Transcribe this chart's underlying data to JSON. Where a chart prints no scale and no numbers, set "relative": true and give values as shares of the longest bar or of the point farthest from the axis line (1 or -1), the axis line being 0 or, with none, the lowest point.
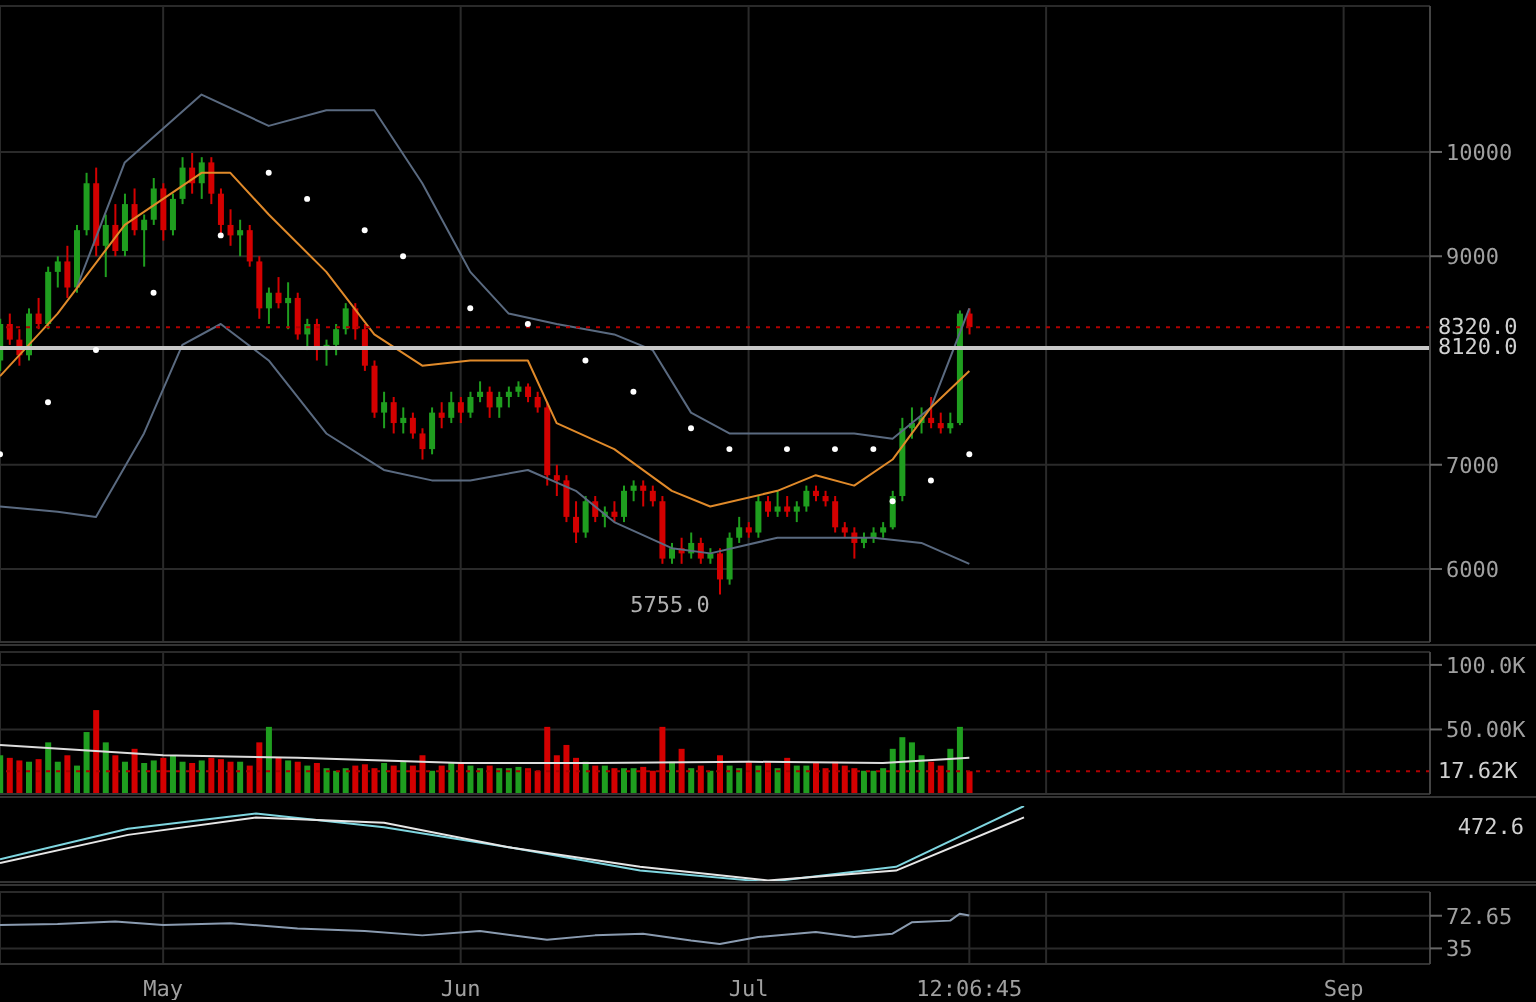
{
  "chart_data": [
    {
      "type": "candlestick",
      "x": [
        "--04-14",
        "--04-15",
        "--04-16",
        "--04-17",
        "--04-18",
        "--04-19",
        "--04-20",
        "--04-21",
        "--04-22",
        "--04-23",
        "--04-24",
        "--04-25",
        "--04-26",
        "--04-27",
        "--04-28",
        "--04-29",
        "--04-30",
        "--05-01",
        "--05-02",
        "--05-03",
        "--05-04",
        "--05-05",
        "--05-06",
        "--05-07",
        "--05-08",
        "--05-09",
        "--05-10",
        "--05-11",
        "--05-12",
        "--05-13",
        "--05-14",
        "--05-15",
        "--05-16",
        "--05-17",
        "--05-18",
        "--05-19",
        "--05-20",
        "--05-21",
        "--05-22",
        "--05-23",
        "--05-24",
        "--05-25",
        "--05-26",
        "--05-27",
        "--05-28",
        "--05-29",
        "--05-30",
        "--05-31",
        "--06-01",
        "--06-02",
        "--06-03",
        "--06-04",
        "--06-05",
        "--06-06",
        "--06-07",
        "--06-08",
        "--06-09",
        "--06-10",
        "--06-11",
        "--06-12",
        "--06-13",
        "--06-14",
        "--06-15",
        "--06-16",
        "--06-17",
        "--06-18",
        "--06-19",
        "--06-20",
        "--06-21",
        "--06-22",
        "--06-23",
        "--06-24",
        "--06-25",
        "--06-26",
        "--06-27",
        "--06-28",
        "--06-29",
        "--06-30",
        "--07-01",
        "--07-02",
        "--07-03",
        "--07-04",
        "--07-05",
        "--07-06",
        "--07-07",
        "--07-08",
        "--07-09",
        "--07-10",
        "--07-11",
        "--07-12",
        "--07-13",
        "--07-14",
        "--07-15",
        "--07-16",
        "--07-17",
        "--07-18",
        "--07-19",
        "--07-20",
        "--07-21",
        "--07-22",
        "--07-23",
        "--07-24"
      ],
      "ohlc": [
        [
          8000,
          8400,
          7900,
          8350
        ],
        [
          8350,
          8450,
          8150,
          8200
        ],
        [
          8200,
          8300,
          7950,
          8050
        ],
        [
          8050,
          8500,
          8000,
          8450
        ],
        [
          8450,
          8600,
          8300,
          8350
        ],
        [
          8350,
          8900,
          8300,
          8850
        ],
        [
          8850,
          9000,
          8700,
          8950
        ],
        [
          8950,
          9100,
          8600,
          8700
        ],
        [
          8700,
          9300,
          8650,
          9250
        ],
        [
          9250,
          9800,
          9200,
          9700
        ],
        [
          9700,
          9850,
          9000,
          9100
        ],
        [
          9100,
          9400,
          8800,
          9300
        ],
        [
          9300,
          9500,
          9000,
          9050
        ],
        [
          9050,
          9600,
          9000,
          9500
        ],
        [
          9500,
          9650,
          9200,
          9250
        ],
        [
          9250,
          9400,
          8900,
          9350
        ],
        [
          9350,
          9750,
          9300,
          9650
        ],
        [
          9650,
          9700,
          9150,
          9250
        ],
        [
          9250,
          9600,
          9200,
          9550
        ],
        [
          9550,
          9950,
          9500,
          9850
        ],
        [
          9850,
          9990,
          9600,
          9700
        ],
        [
          9700,
          9950,
          9550,
          9900
        ],
        [
          9900,
          9950,
          9500,
          9600
        ],
        [
          9600,
          9650,
          9200,
          9300
        ],
        [
          9300,
          9450,
          9100,
          9200
        ],
        [
          9200,
          9350,
          9000,
          9250
        ],
        [
          9250,
          9300,
          8900,
          8950
        ],
        [
          8950,
          9000,
          8400,
          8500
        ],
        [
          8500,
          8700,
          8350,
          8650
        ],
        [
          8650,
          8800,
          8500,
          8550
        ],
        [
          8550,
          8750,
          8300,
          8600
        ],
        [
          8600,
          8650,
          8200,
          8250
        ],
        [
          8250,
          8400,
          8100,
          8350
        ],
        [
          8350,
          8400,
          8000,
          8100
        ],
        [
          8100,
          8200,
          7950,
          8150
        ],
        [
          8150,
          8350,
          8050,
          8300
        ],
        [
          8300,
          8550,
          8250,
          8500
        ],
        [
          8500,
          8550,
          8200,
          8300
        ],
        [
          8300,
          8350,
          7900,
          7950
        ],
        [
          7950,
          8000,
          7450,
          7500
        ],
        [
          7500,
          7700,
          7350,
          7600
        ],
        [
          7600,
          7650,
          7300,
          7400
        ],
        [
          7400,
          7550,
          7300,
          7450
        ],
        [
          7450,
          7500,
          7250,
          7300
        ],
        [
          7300,
          7350,
          7050,
          7150
        ],
        [
          7150,
          7550,
          7100,
          7500
        ],
        [
          7500,
          7600,
          7350,
          7450
        ],
        [
          7450,
          7700,
          7400,
          7600
        ],
        [
          7600,
          7650,
          7400,
          7500
        ],
        [
          7500,
          7700,
          7450,
          7650
        ],
        [
          7650,
          7800,
          7600,
          7700
        ],
        [
          7700,
          7750,
          7450,
          7550
        ],
        [
          7550,
          7700,
          7450,
          7650
        ],
        [
          7650,
          7750,
          7550,
          7700
        ],
        [
          7700,
          7800,
          7650,
          7750
        ],
        [
          7750,
          7780,
          7600,
          7650
        ],
        [
          7650,
          7700,
          7500,
          7550
        ],
        [
          7550,
          7600,
          6800,
          6900
        ],
        [
          6900,
          7000,
          6700,
          6850
        ],
        [
          6850,
          6900,
          6450,
          6500
        ],
        [
          6500,
          6650,
          6250,
          6350
        ],
        [
          6350,
          6700,
          6300,
          6650
        ],
        [
          6650,
          6700,
          6450,
          6500
        ],
        [
          6500,
          6600,
          6400,
          6550
        ],
        [
          6550,
          6650,
          6450,
          6500
        ],
        [
          6500,
          6800,
          6450,
          6750
        ],
        [
          6750,
          6850,
          6650,
          6800
        ],
        [
          6800,
          6850,
          6600,
          6750
        ],
        [
          6750,
          6800,
          6600,
          6650
        ],
        [
          6650,
          6700,
          6050,
          6100
        ],
        [
          6100,
          6250,
          6050,
          6200
        ],
        [
          6200,
          6300,
          6050,
          6150
        ],
        [
          6150,
          6350,
          6100,
          6250
        ],
        [
          6250,
          6300,
          6050,
          6100
        ],
        [
          6100,
          6200,
          6050,
          6150
        ],
        [
          6150,
          6200,
          5755,
          5900
        ],
        [
          5900,
          6350,
          5850,
          6300
        ],
        [
          6300,
          6500,
          6250,
          6400
        ],
        [
          6400,
          6450,
          6300,
          6350
        ],
        [
          6350,
          6700,
          6300,
          6650
        ],
        [
          6650,
          6700,
          6500,
          6550
        ],
        [
          6550,
          6750,
          6500,
          6600
        ],
        [
          6600,
          6700,
          6500,
          6550
        ],
        [
          6550,
          6650,
          6450,
          6600
        ],
        [
          6600,
          6800,
          6550,
          6750
        ],
        [
          6750,
          6800,
          6650,
          6700
        ],
        [
          6700,
          6750,
          6600,
          6650
        ],
        [
          6650,
          6700,
          6350,
          6400
        ],
        [
          6400,
          6450,
          6300,
          6350
        ],
        [
          6350,
          6400,
          6100,
          6250
        ],
        [
          6250,
          6350,
          6200,
          6300
        ],
        [
          6300,
          6400,
          6250,
          6350
        ],
        [
          6350,
          6450,
          6300,
          6400
        ],
        [
          6400,
          6750,
          6380,
          6700
        ],
        [
          6700,
          7450,
          6650,
          7350
        ],
        [
          7350,
          7550,
          7250,
          7400
        ],
        [
          7400,
          7550,
          7300,
          7450
        ],
        [
          7450,
          7650,
          7350,
          7400
        ],
        [
          7400,
          7500,
          7300,
          7350
        ],
        [
          7350,
          7500,
          7300,
          7400
        ],
        [
          7400,
          8480,
          7380,
          8450
        ],
        [
          8450,
          8500,
          8250,
          8320
        ]
      ],
      "colors": [
        "#1f9e1f",
        "#d40000",
        "#d40000",
        "#1f9e1f",
        "#d40000",
        "#1f9e1f",
        "#1f9e1f",
        "#d40000",
        "#1f9e1f",
        "#1f9e1f",
        "#d40000",
        "#1f9e1f",
        "#d40000",
        "#1f9e1f",
        "#d40000",
        "#1f9e1f",
        "#1f9e1f",
        "#d40000",
        "#1f9e1f",
        "#1f9e1f",
        "#d40000",
        "#1f9e1f",
        "#d40000",
        "#d40000",
        "#d40000",
        "#1f9e1f",
        "#d40000",
        "#d40000",
        "#1f9e1f",
        "#d40000",
        "#1f9e1f",
        "#d40000",
        "#1f9e1f",
        "#d40000",
        "#1f9e1f",
        "#1f9e1f",
        "#1f9e1f",
        "#d40000",
        "#d40000",
        "#d40000",
        "#1f9e1f",
        "#d40000",
        "#1f9e1f",
        "#d40000",
        "#d40000",
        "#1f9e1f",
        "#d40000",
        "#1f9e1f",
        "#d40000",
        "#1f9e1f",
        "#1f9e1f",
        "#d40000",
        "#1f9e1f",
        "#1f9e1f",
        "#1f9e1f",
        "#d40000",
        "#d40000",
        "#d40000",
        "#d40000",
        "#d40000",
        "#d40000",
        "#1f9e1f",
        "#d40000",
        "#1f9e1f",
        "#d40000",
        "#1f9e1f",
        "#1f9e1f",
        "#d40000",
        "#d40000",
        "#d40000",
        "#1f9e1f",
        "#d40000",
        "#1f9e1f",
        "#d40000",
        "#1f9e1f",
        "#d40000",
        "#1f9e1f",
        "#1f9e1f",
        "#d40000",
        "#1f9e1f",
        "#d40000",
        "#1f9e1f",
        "#d40000",
        "#1f9e1f",
        "#1f9e1f",
        "#d40000",
        "#d40000",
        "#d40000",
        "#d40000",
        "#d40000",
        "#1f9e1f",
        "#1f9e1f",
        "#1f9e1f",
        "#1f9e1f",
        "#1f9e1f",
        "#1f9e1f",
        "#1f9e1f",
        "#d40000",
        "#d40000",
        "#1f9e1f",
        "#1f9e1f",
        "#d40000"
      ],
      "series": [
        {
          "type": "line",
          "color": "#5a6a80",
          "x": [
            "--04-22",
            "--04-27",
            "--05-05",
            "--05-12",
            "--05-18",
            "--05-23",
            "--05-28",
            "--06-02",
            "--06-06",
            "--06-11",
            "--06-17",
            "--06-21",
            "--06-25",
            "--06-29",
            "--07-04",
            "--07-08",
            "--07-12",
            "--07-16",
            "--07-20",
            "--07-24"
          ],
          "values": [
            8700,
            9900,
            10550,
            10250,
            10400,
            10400,
            9700,
            8850,
            8450,
            8350,
            8250,
            8100,
            7500,
            7300,
            7300,
            7300,
            7300,
            7250,
            7550,
            8500
          ]
        },
        {
          "type": "line",
          "color": "#5a6a80",
          "x": [
            "--04-14",
            "--04-20",
            "--04-24",
            "--04-29",
            "--05-03",
            "--05-07",
            "--05-12",
            "--05-18",
            "--05-24",
            "--05-29",
            "--06-02",
            "--06-08",
            "--06-13",
            "--06-17",
            "--06-23",
            "--06-27",
            "--07-04",
            "--07-10",
            "--07-14",
            "--07-19",
            "--07-24"
          ],
          "values": [
            6600,
            6550,
            6500,
            7300,
            8150,
            8350,
            8000,
            7300,
            6950,
            6850,
            6850,
            6950,
            6750,
            6450,
            6200,
            6150,
            6300,
            6300,
            6300,
            6250,
            6050
          ]
        },
        {
          "type": "line",
          "color": "#e08a2a",
          "x": [
            "--04-14",
            "--04-20",
            "--04-27",
            "--05-05",
            "--05-08",
            "--05-12",
            "--05-18",
            "--05-23",
            "--05-28",
            "--06-02",
            "--06-08",
            "--06-11",
            "--06-17",
            "--06-23",
            "--06-27",
            "--07-04",
            "--07-08",
            "--07-12",
            "--07-16",
            "--07-20",
            "--07-24"
          ],
          "values": [
            7850,
            8450,
            9300,
            9800,
            9800,
            9400,
            8850,
            8250,
            7950,
            8000,
            8000,
            7400,
            7150,
            6750,
            6600,
            6750,
            6900,
            6800,
            7050,
            7550,
            7900
          ]
        },
        {
          "type": "scatter",
          "color": "#ffffff",
          "x": [
            "--04-14",
            "--04-19",
            "--04-24",
            "--04-30",
            "--05-07",
            "--05-12",
            "--05-16",
            "--05-22",
            "--05-26",
            "--06-02",
            "--06-08",
            "--06-14",
            "--06-19",
            "--06-25",
            "--06-29",
            "--07-05",
            "--07-10",
            "--07-14",
            "--07-16",
            "--07-20",
            "--07-24"
          ],
          "values": [
            7100,
            7600,
            8100,
            8650,
            9200,
            9800,
            9550,
            9250,
            9000,
            8500,
            8350,
            8000,
            7700,
            7350,
            7150,
            7150,
            7150,
            7150,
            6650,
            6850,
            7100
          ]
        }
      ],
      "xlim": [
        "--04-14",
        "--09-10"
      ],
      "xticks": [
        {
          "value": "--05-01",
          "label": null
        },
        {
          "value": "--06-01",
          "label": null
        },
        {
          "value": "--07-01",
          "label": null
        },
        {
          "value": "--08-01",
          "label": null
        },
        {
          "value": "--09-01",
          "label": null
        }
      ],
      "ylim": [
        5300,
        11400
      ],
      "yticks": [
        6000,
        7000,
        9000,
        10000
      ],
      "ref_lines": [
        {
          "axis": "y",
          "value": 8320,
          "label": "8320.0",
          "color": "#b00000",
          "line_style": "dotted"
        },
        {
          "axis": "y",
          "value": 8120,
          "label": "8120.0",
          "color": "#c8c8c8",
          "line_style": "solid"
        }
      ],
      "annotations": [
        {
          "text": "5755.0",
          "x": "--06-28",
          "y": 5755
        }
      ],
      "grid": true,
      "tick_labels": "y"
    },
    {
      "type": "bar",
      "x": [
        "--04-14",
        "--04-15",
        "--04-16",
        "--04-17",
        "--04-18",
        "--04-19",
        "--04-20",
        "--04-21",
        "--04-22",
        "--04-23",
        "--04-24",
        "--04-25",
        "--04-26",
        "--04-27",
        "--04-28",
        "--04-29",
        "--04-30",
        "--05-01",
        "--05-02",
        "--05-03",
        "--05-04",
        "--05-05",
        "--05-06",
        "--05-07",
        "--05-08",
        "--05-09",
        "--05-10",
        "--05-11",
        "--05-12",
        "--05-13",
        "--05-14",
        "--05-15",
        "--05-16",
        "--05-17",
        "--05-18",
        "--05-19",
        "--05-20",
        "--05-21",
        "--05-22",
        "--05-23",
        "--05-24",
        "--05-25",
        "--05-26",
        "--05-27",
        "--05-28",
        "--05-29",
        "--05-30",
        "--05-31",
        "--06-01",
        "--06-02",
        "--06-03",
        "--06-04",
        "--06-05",
        "--06-06",
        "--06-07",
        "--06-08",
        "--06-09",
        "--06-10",
        "--06-11",
        "--06-12",
        "--06-13",
        "--06-14",
        "--06-15",
        "--06-16",
        "--06-17",
        "--06-18",
        "--06-19",
        "--06-20",
        "--06-21",
        "--06-22",
        "--06-23",
        "--06-24",
        "--06-25",
        "--06-26",
        "--06-27",
        "--06-28",
        "--06-29",
        "--06-30",
        "--07-01",
        "--07-02",
        "--07-03",
        "--07-04",
        "--07-05",
        "--07-06",
        "--07-07",
        "--07-08",
        "--07-09",
        "--07-10",
        "--07-11",
        "--07-12",
        "--07-13",
        "--07-14",
        "--07-15",
        "--07-16",
        "--07-17",
        "--07-18",
        "--07-19",
        "--07-20",
        "--07-21",
        "--07-22",
        "--07-23",
        "--07-24"
      ],
      "series": [
        {
          "type": "bar",
          "values": [
            30000,
            28000,
            26000,
            25000,
            27000,
            40000,
            25000,
            30000,
            22000,
            48000,
            65000,
            40000,
            30000,
            25000,
            35000,
            24000,
            26000,
            28000,
            30000,
            25000,
            24000,
            26000,
            28000,
            27000,
            25000,
            25000,
            22000,
            40000,
            52000,
            28000,
            26000,
            25000,
            22000,
            24000,
            20000,
            18000,
            20000,
            22000,
            23000,
            20000,
            24000,
            22000,
            25000,
            22000,
            30000,
            18000,
            22000,
            24000,
            24000,
            22000,
            20000,
            22000,
            20000,
            20000,
            21000,
            20000,
            18000,
            52000,
            30000,
            38000,
            28000,
            25000,
            22000,
            22000,
            20000,
            20000,
            20000,
            21000,
            18000,
            52000,
            25000,
            35000,
            20000,
            22000,
            18000,
            30000,
            22000,
            20000,
            25000,
            22000,
            25000,
            20000,
            28000,
            22000,
            22000,
            24000,
            20000,
            25000,
            22000,
            20000,
            18000,
            18000,
            20000,
            35000,
            44000,
            40000,
            30000,
            25000,
            22000,
            35000,
            52000,
            17620
          ],
          "colors": [
            "#1f9e1f",
            "#d40000",
            "#d40000",
            "#1f9e1f",
            "#d40000",
            "#1f9e1f",
            "#1f9e1f",
            "#d40000",
            "#1f9e1f",
            "#1f9e1f",
            "#d40000",
            "#1f9e1f",
            "#d40000",
            "#1f9e1f",
            "#d40000",
            "#1f9e1f",
            "#1f9e1f",
            "#d40000",
            "#1f9e1f",
            "#1f9e1f",
            "#d40000",
            "#1f9e1f",
            "#d40000",
            "#d40000",
            "#d40000",
            "#1f9e1f",
            "#d40000",
            "#d40000",
            "#1f9e1f",
            "#d40000",
            "#1f9e1f",
            "#d40000",
            "#1f9e1f",
            "#d40000",
            "#1f9e1f",
            "#1f9e1f",
            "#1f9e1f",
            "#d40000",
            "#d40000",
            "#d40000",
            "#1f9e1f",
            "#d40000",
            "#1f9e1f",
            "#d40000",
            "#d40000",
            "#1f9e1f",
            "#d40000",
            "#1f9e1f",
            "#d40000",
            "#1f9e1f",
            "#1f9e1f",
            "#d40000",
            "#1f9e1f",
            "#1f9e1f",
            "#1f9e1f",
            "#d40000",
            "#d40000",
            "#d40000",
            "#d40000",
            "#d40000",
            "#d40000",
            "#1f9e1f",
            "#d40000",
            "#1f9e1f",
            "#d40000",
            "#1f9e1f",
            "#1f9e1f",
            "#d40000",
            "#d40000",
            "#d40000",
            "#1f9e1f",
            "#d40000",
            "#1f9e1f",
            "#d40000",
            "#1f9e1f",
            "#d40000",
            "#1f9e1f",
            "#1f9e1f",
            "#d40000",
            "#1f9e1f",
            "#d40000",
            "#1f9e1f",
            "#d40000",
            "#1f9e1f",
            "#1f9e1f",
            "#d40000",
            "#d40000",
            "#d40000",
            "#d40000",
            "#d40000",
            "#1f9e1f",
            "#1f9e1f",
            "#1f9e1f",
            "#1f9e1f",
            "#1f9e1f",
            "#1f9e1f",
            "#1f9e1f",
            "#d40000",
            "#d40000",
            "#1f9e1f",
            "#1f9e1f",
            "#d40000"
          ]
        },
        {
          "type": "line",
          "color": "#dddddd",
          "x": [
            "--04-14",
            "--05-01",
            "--05-15",
            "--06-01",
            "--06-15",
            "--07-01",
            "--07-15",
            "--07-24"
          ],
          "values": [
            38000,
            30000,
            28000,
            24000,
            24000,
            25000,
            24000,
            28000
          ]
        }
      ],
      "xlim": [
        "--04-14",
        "--09-10"
      ],
      "xticks": [
        {
          "value": "--05-01",
          "label": null
        },
        {
          "value": "--06-01",
          "label": null
        },
        {
          "value": "--07-01",
          "label": null
        },
        {
          "value": "--08-01",
          "label": null
        },
        {
          "value": "--09-01",
          "label": null
        }
      ],
      "ylim": [
        0,
        110000
      ],
      "yticks": [
        {
          "value": 100000,
          "label": "100.0K"
        },
        {
          "value": 50000,
          "label": "50.00K"
        }
      ],
      "ref_lines": [
        {
          "axis": "y",
          "value": 17620,
          "label": "17.62K",
          "color": "#b00000",
          "line_style": "dotted"
        }
      ],
      "grid": true,
      "tick_labels": "y"
    },
    {
      "type": "line",
      "relative": true,
      "categories": [
        null,
        null,
        null,
        null,
        null,
        null,
        null,
        null,
        null,
        null,
        null,
        null,
        null
      ],
      "series": [
        {
          "color": "#7fd6e0",
          "values": [
            0.3,
            0.7,
            0.9,
            0.72,
            0.45,
            0.15,
            0,
            0.2,
            1,
            null,
            null,
            null,
            null
          ]
        },
        {
          "color": "#e6e6e6",
          "values": [
            0.25,
            0.62,
            0.85,
            0.78,
            0.45,
            0.2,
            0.02,
            0.15,
            0.85,
            null,
            null,
            null,
            null
          ]
        }
      ],
      "annotations": [
        "472.6"
      ],
      "tick_labels": false
    },
    {
      "type": "line",
      "series": [
        {
          "color": "#8a9bb0",
          "x": [
            "--04-14",
            "--04-20",
            "--04-26",
            "--05-01",
            "--05-08",
            "--05-15",
            "--05-22",
            "--05-28",
            "--06-03",
            "--06-10",
            "--06-15",
            "--06-20",
            "--06-25",
            "--06-28",
            "--07-02",
            "--07-08",
            "--07-12",
            "--07-16",
            "--07-18",
            "--07-22",
            "--07-23",
            "--07-24"
          ],
          "values": [
            62,
            63,
            66,
            62,
            64,
            58,
            55,
            50,
            55,
            45,
            50,
            52,
            44,
            40,
            48,
            54,
            48,
            52,
            65,
            67,
            75,
            73
          ]
        }
      ],
      "xlim": [
        "--04-14",
        "--09-10"
      ],
      "xticks": [
        {
          "value": "--05-01",
          "label": "May"
        },
        {
          "value": "--06-01",
          "label": "Jun"
        },
        {
          "value": "--07-01",
          "label": "Jul"
        },
        {
          "value": "--07-24",
          "label": "12:06:45"
        },
        {
          "value": "--08-01",
          "label": null
        },
        {
          "value": "--09-01",
          "label": "Sep"
        }
      ],
      "ylim": [
        17,
        100
      ],
      "yticks": [
        {
          "value": 72.65,
          "label": "72.65"
        },
        35
      ],
      "grid": true
    }
  ]
}
